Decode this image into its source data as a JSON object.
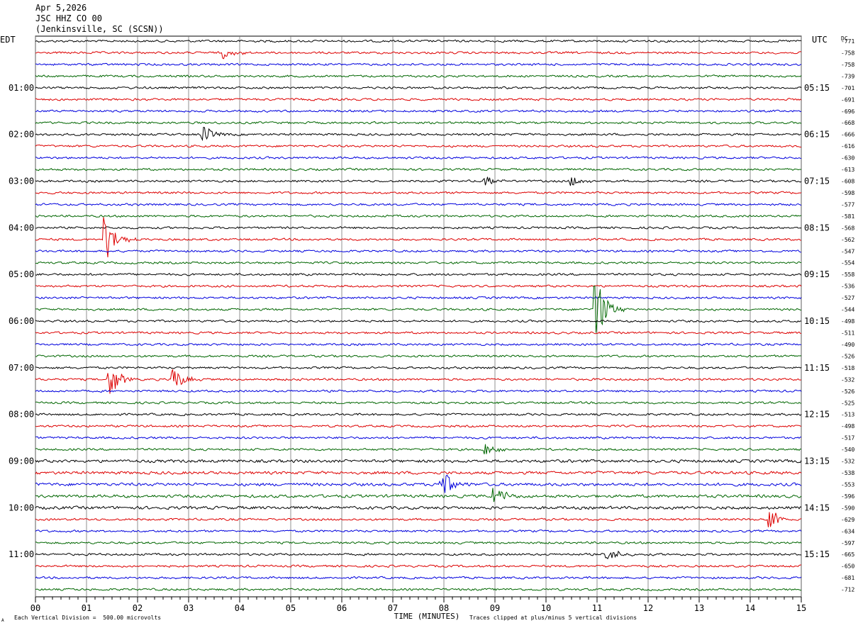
{
  "header": {
    "date": "Apr 5,2026",
    "station": "JSC HHZ CO 00",
    "location": "(Jenkinsville, SC (SCSN))"
  },
  "timezones": {
    "left": "EDT",
    "right": "UTC",
    "dc_label": "DC"
  },
  "footer": {
    "scale_note": "Each Vertical Division =  500.00 microvolts",
    "clip_note": "Traces clipped at plus/minus 5 vertical divisions",
    "corner_mark": "A"
  },
  "chart_data": {
    "type": "line",
    "title": "",
    "xlabel": "TIME (MINUTES)",
    "xlim": [
      0,
      15
    ],
    "x_ticks": [
      "00",
      "01",
      "02",
      "03",
      "04",
      "05",
      "06",
      "07",
      "08",
      "09",
      "10",
      "11",
      "12",
      "13",
      "14",
      "15"
    ],
    "trace_colors": [
      "#000000",
      "#dd0000",
      "#0000dd",
      "#006600"
    ],
    "left_hour_labels": [
      "01:00",
      "02:00",
      "03:00",
      "04:00",
      "05:00",
      "06:00",
      "07:00",
      "08:00",
      "09:00",
      "10:00",
      "11:00"
    ],
    "right_hour_labels": [
      "05:15",
      "06:15",
      "07:15",
      "08:15",
      "09:15",
      "10:15",
      "11:15",
      "12:15",
      "13:15",
      "14:15",
      "15:15"
    ],
    "dc_offsets": [
      "-771",
      "-758",
      "-758",
      "-739",
      "-701",
      "-691",
      "-696",
      "-668",
      "-666",
      "-616",
      "-630",
      "-613",
      "-608",
      "-598",
      "-577",
      "-581",
      "-568",
      "-562",
      "-547",
      "-554",
      "-558",
      "-536",
      "-527",
      "-544",
      "-498",
      "-511",
      "-490",
      "-526",
      "-518",
      "-532",
      "-526",
      "-525",
      "-513",
      "-498",
      "-517",
      "-540",
      "-532",
      "-538",
      "-553",
      "-596",
      "-590",
      "-629",
      "-634",
      "-597",
      "-665",
      "-650",
      "-681",
      "-712"
    ],
    "events": [
      {
        "trace": 1,
        "minute": 3.7,
        "amplitude": 0.5
      },
      {
        "trace": 8,
        "minute": 3.3,
        "amplitude": 0.8
      },
      {
        "trace": 12,
        "minute": 8.8,
        "amplitude": 0.5
      },
      {
        "trace": 12,
        "minute": 10.5,
        "amplitude": 0.5
      },
      {
        "trace": 17,
        "minute": 1.38,
        "amplitude": 2.0
      },
      {
        "trace": 23,
        "minute": 10.95,
        "amplitude": 4.0
      },
      {
        "trace": 29,
        "minute": 1.45,
        "amplitude": 1.8
      },
      {
        "trace": 29,
        "minute": 2.7,
        "amplitude": 1.2
      },
      {
        "trace": 35,
        "minute": 8.8,
        "amplitude": 0.6
      },
      {
        "trace": 38,
        "minute": 7.95,
        "amplitude": 1.5
      },
      {
        "trace": 39,
        "minute": 9.0,
        "amplitude": 1.0
      },
      {
        "trace": 41,
        "minute": 14.4,
        "amplitude": 1.0
      },
      {
        "trace": 44,
        "minute": 11.2,
        "amplitude": 0.8
      }
    ]
  }
}
